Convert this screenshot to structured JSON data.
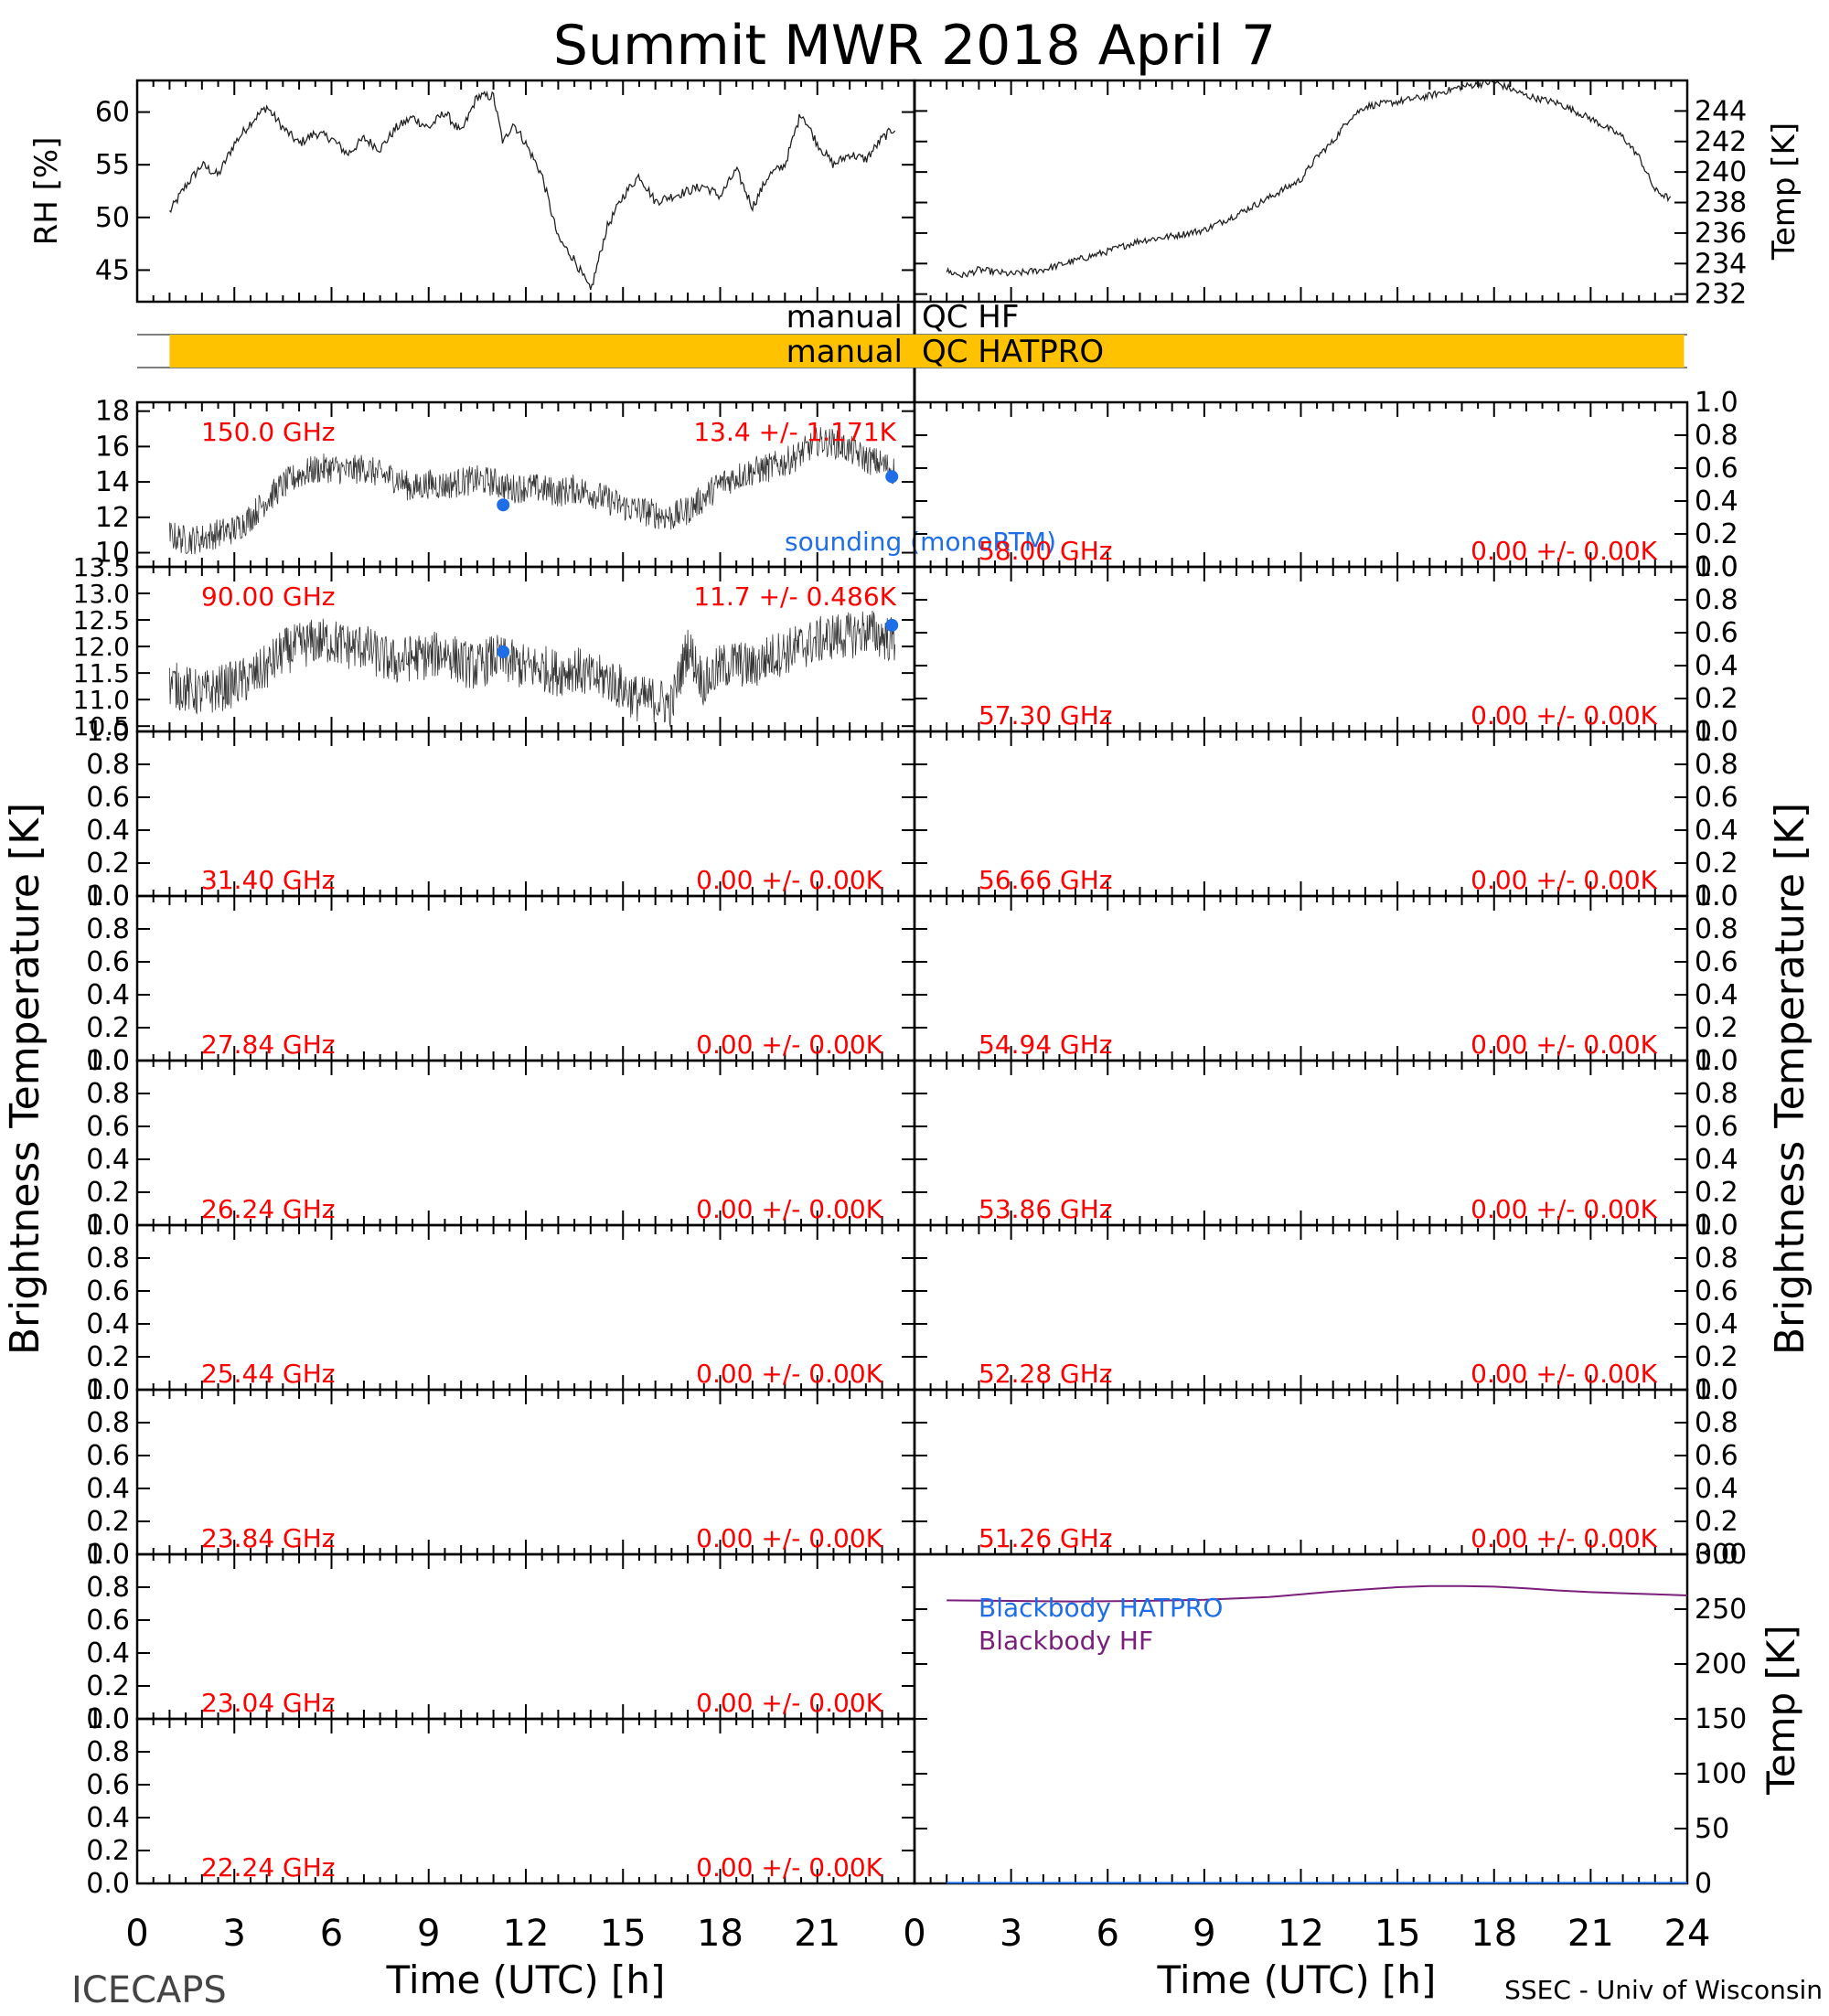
{
  "chart_data": {
    "type": "line",
    "title": "Summit  MWR  2018  April   7",
    "footer": {
      "left": "ICECAPS",
      "right": "SSEC  -  Univ of Wisconsin"
    },
    "xlabel": "Time  (UTC)  [h]",
    "xlim": [
      0,
      24
    ],
    "x_ticks": [
      "0",
      "3",
      "6",
      "9",
      "12",
      "15",
      "18",
      "21",
      "24"
    ],
    "bt_axis_label": "Brightness  Temperature  [K]",
    "colors": {
      "axes": "#000000",
      "channel_label": "#ff0000",
      "sounding": "#1e6ee8",
      "qc_bar": "#ffc200",
      "blackbody_hatpro": "#1e6ee8",
      "blackbody_hf": "#7a1f7a"
    },
    "met": {
      "rh": {
        "ylabel": "RH  [%]",
        "ylim": [
          42,
          63
        ],
        "ticks": [
          "45",
          "50",
          "55",
          "60"
        ],
        "x": [
          1.0,
          1.5,
          2.0,
          2.5,
          3.0,
          3.5,
          4.0,
          4.5,
          5.0,
          5.5,
          6.0,
          6.5,
          7.0,
          7.5,
          8.0,
          8.5,
          9.0,
          9.5,
          10.0,
          10.5,
          11.0,
          11.3,
          11.6,
          12.0,
          12.5,
          13.0,
          13.5,
          14.0,
          14.5,
          15.0,
          15.5,
          16.0,
          16.5,
          17.0,
          17.5,
          18.0,
          18.5,
          19.0,
          19.5,
          20.0,
          20.5,
          21.0,
          21.5,
          22.0,
          22.5,
          23.0,
          23.4
        ],
        "values": [
          50.5,
          53,
          55,
          54,
          57,
          59,
          60.5,
          58.5,
          57,
          58,
          57.5,
          56,
          57.5,
          56.5,
          58.5,
          59.5,
          58.5,
          60,
          58,
          61.5,
          61.5,
          57,
          59,
          57,
          54,
          48,
          46,
          43,
          49,
          52,
          54,
          51.5,
          52,
          52.5,
          53,
          52,
          54.5,
          51,
          54,
          55,
          60,
          57,
          55,
          56,
          55.5,
          57.5,
          58.5
        ]
      },
      "temp": {
        "ylabel": "Temp  [K]",
        "ylim": [
          231.5,
          246
        ],
        "ticks": [
          "232",
          "234",
          "236",
          "238",
          "240",
          "242",
          "244"
        ],
        "x": [
          1.0,
          1.5,
          2.0,
          3.0,
          4.0,
          5.0,
          6.0,
          7.0,
          8.0,
          9.0,
          10.0,
          11.0,
          12.0,
          12.5,
          13.0,
          13.5,
          14.0,
          15.0,
          16.0,
          17.0,
          18.0,
          19.0,
          20.0,
          21.0,
          22.0,
          22.5,
          23.0,
          23.5
        ],
        "values": [
          233.5,
          233.2,
          233.6,
          233.3,
          233.6,
          234.2,
          234.8,
          235.5,
          235.8,
          236.2,
          237.2,
          238.3,
          239.5,
          241.0,
          242.0,
          243.5,
          244.3,
          244.6,
          245.0,
          245.6,
          245.9,
          245.0,
          244.5,
          243.5,
          242.3,
          241.0,
          238.8,
          238.2
        ]
      }
    },
    "qc": {
      "hf_label": "manual",
      "hf_name": "QC  HF",
      "hatpro_label": "manual",
      "hatpro_name": "QC  HATPRO",
      "hatpro_range": [
        1.0,
        23.9
      ]
    },
    "legend": {
      "sounding": "sounding (monoRTM)",
      "blackbody_hatpro": "Blackbody  HATPRO",
      "blackbody_hf": "Blackbody  HF"
    },
    "panels_left": [
      {
        "freq": "150.0  GHz",
        "stat": "13.4  +/-  1.171K",
        "ylim": [
          9.2,
          18.5
        ],
        "ticks": [
          "10",
          "12",
          "14",
          "16",
          "18"
        ],
        "x": [
          1.0,
          1.5,
          2.0,
          2.5,
          3.0,
          3.5,
          4.0,
          4.5,
          5.0,
          5.5,
          6.0,
          6.5,
          7.0,
          7.5,
          8.0,
          8.5,
          9.0,
          9.5,
          10.0,
          10.5,
          11.0,
          11.5,
          12.0,
          12.5,
          13.0,
          13.5,
          14.0,
          14.5,
          15.0,
          15.5,
          16.0,
          16.5,
          17.0,
          17.5,
          18.0,
          18.5,
          19.0,
          19.5,
          20.0,
          20.5,
          21.0,
          21.5,
          22.0,
          22.5,
          23.0,
          23.4
        ],
        "values": [
          11.0,
          10.7,
          10.8,
          11.1,
          11.3,
          12.0,
          13.0,
          13.8,
          14.4,
          14.7,
          14.8,
          14.6,
          14.8,
          14.4,
          14.2,
          13.6,
          13.9,
          13.8,
          14.0,
          14.1,
          14.0,
          13.6,
          13.7,
          13.6,
          13.4,
          13.6,
          13.4,
          13.0,
          12.6,
          12.4,
          12.2,
          12.0,
          12.4,
          13.1,
          13.9,
          14.3,
          14.6,
          14.8,
          15.1,
          15.6,
          16.3,
          16.2,
          15.8,
          15.3,
          15.0,
          14.6
        ],
        "noise": 0.85,
        "sounding": [
          [
            11.3,
            12.7
          ],
          [
            23.3,
            14.3
          ]
        ]
      },
      {
        "freq": "90.00  GHz",
        "stat": "11.7  +/-  0.486K",
        "ylim": [
          10.4,
          13.5
        ],
        "ticks": [
          "10.5",
          "11.0",
          "11.5",
          "12.0",
          "12.5",
          "13.0",
          "13.5"
        ],
        "x": [
          1.0,
          1.5,
          2.0,
          2.5,
          3.0,
          3.5,
          4.0,
          4.5,
          5.0,
          5.5,
          6.0,
          6.5,
          7.0,
          7.5,
          8.0,
          8.5,
          9.0,
          9.5,
          10.0,
          10.5,
          11.0,
          11.5,
          12.0,
          12.5,
          13.0,
          13.5,
          14.0,
          14.5,
          15.0,
          15.5,
          16.0,
          16.5,
          17.0,
          17.5,
          18.0,
          18.5,
          19.0,
          19.5,
          20.0,
          20.5,
          21.0,
          21.5,
          22.0,
          22.5,
          23.0,
          23.4
        ],
        "values": [
          11.3,
          11.2,
          11.1,
          11.2,
          11.3,
          11.4,
          11.6,
          11.9,
          12.0,
          12.1,
          12.1,
          12.0,
          12.0,
          11.8,
          11.7,
          11.8,
          11.8,
          11.9,
          11.7,
          11.6,
          11.8,
          11.7,
          11.6,
          11.6,
          11.5,
          11.6,
          11.4,
          11.4,
          11.2,
          11.0,
          11.0,
          10.9,
          12.0,
          11.3,
          11.6,
          11.7,
          11.6,
          11.8,
          11.9,
          12.0,
          12.1,
          12.2,
          12.2,
          12.3,
          12.2,
          12.1
        ],
        "noise": 0.45,
        "sounding": [
          [
            11.3,
            11.9
          ],
          [
            23.3,
            12.4
          ]
        ]
      },
      {
        "freq": "31.40  GHz",
        "stat": "0.00  +/-  0.00K",
        "ylim": [
          0,
          1
        ],
        "ticks": [
          "0.0",
          "0.2",
          "0.4",
          "0.6",
          "0.8",
          "1.0"
        ]
      },
      {
        "freq": "27.84  GHz",
        "stat": "0.00  +/-  0.00K",
        "ylim": [
          0,
          1
        ],
        "ticks": [
          "0.0",
          "0.2",
          "0.4",
          "0.6",
          "0.8",
          "1.0"
        ]
      },
      {
        "freq": "26.24  GHz",
        "stat": "0.00  +/-  0.00K",
        "ylim": [
          0,
          1
        ],
        "ticks": [
          "0.0",
          "0.2",
          "0.4",
          "0.6",
          "0.8",
          "1.0"
        ]
      },
      {
        "freq": "25.44  GHz",
        "stat": "0.00  +/-  0.00K",
        "ylim": [
          0,
          1
        ],
        "ticks": [
          "0.0",
          "0.2",
          "0.4",
          "0.6",
          "0.8",
          "1.0"
        ]
      },
      {
        "freq": "23.84  GHz",
        "stat": "0.00  +/-  0.00K",
        "ylim": [
          0,
          1
        ],
        "ticks": [
          "0.0",
          "0.2",
          "0.4",
          "0.6",
          "0.8",
          "1.0"
        ]
      },
      {
        "freq": "23.04  GHz",
        "stat": "0.00  +/-  0.00K",
        "ylim": [
          0,
          1
        ],
        "ticks": [
          "0.0",
          "0.2",
          "0.4",
          "0.6",
          "0.8",
          "1.0"
        ]
      },
      {
        "freq": "22.24  GHz",
        "stat": "0.00  +/-  0.00K",
        "ylim": [
          0,
          1
        ],
        "ticks": [
          "0.0",
          "0.2",
          "0.4",
          "0.6",
          "0.8",
          "1.0"
        ]
      }
    ],
    "panels_right": [
      {
        "freq": "58.00  GHz",
        "stat": "0.00  +/-  0.00K",
        "ylim": [
          0,
          1
        ],
        "ticks": [
          "0.0",
          "0.2",
          "0.4",
          "0.6",
          "0.8",
          "1.0"
        ]
      },
      {
        "freq": "57.30  GHz",
        "stat": "0.00  +/-  0.00K",
        "ylim": [
          0,
          1
        ],
        "ticks": [
          "0.0",
          "0.2",
          "0.4",
          "0.6",
          "0.8",
          "1.0"
        ]
      },
      {
        "freq": "56.66  GHz",
        "stat": "0.00  +/-  0.00K",
        "ylim": [
          0,
          1
        ],
        "ticks": [
          "0.0",
          "0.2",
          "0.4",
          "0.6",
          "0.8",
          "1.0"
        ]
      },
      {
        "freq": "54.94  GHz",
        "stat": "0.00  +/-  0.00K",
        "ylim": [
          0,
          1
        ],
        "ticks": [
          "0.0",
          "0.2",
          "0.4",
          "0.6",
          "0.8",
          "1.0"
        ]
      },
      {
        "freq": "53.86  GHz",
        "stat": "0.00  +/-  0.00K",
        "ylim": [
          0,
          1
        ],
        "ticks": [
          "0.0",
          "0.2",
          "0.4",
          "0.6",
          "0.8",
          "1.0"
        ]
      },
      {
        "freq": "52.28  GHz",
        "stat": "0.00  +/-  0.00K",
        "ylim": [
          0,
          1
        ],
        "ticks": [
          "0.0",
          "0.2",
          "0.4",
          "0.6",
          "0.8",
          "1.0"
        ]
      },
      {
        "freq": "51.26  GHz",
        "stat": "0.00  +/-  0.00K",
        "ylim": [
          0,
          1
        ],
        "ticks": [
          "0.0",
          "0.2",
          "0.4",
          "0.6",
          "0.8",
          "1.0"
        ]
      }
    ],
    "blackbody": {
      "ylabel": "Temp  [K]",
      "ylim": [
        0,
        300
      ],
      "ticks": [
        "0",
        "50",
        "100",
        "150",
        "200",
        "250",
        "300"
      ],
      "x": [
        1,
        3,
        5,
        7,
        9,
        11,
        13,
        15,
        16,
        17,
        18,
        19,
        20,
        21,
        22,
        23,
        24
      ],
      "hf_values": [
        258,
        257.5,
        257,
        257.5,
        258.5,
        261,
        266,
        270,
        271,
        271,
        270.5,
        269,
        267,
        265.5,
        264.5,
        263.5,
        262.5
      ],
      "hatpro_values": [
        0.5,
        0.5,
        0.5,
        0.5,
        0.5,
        0.5,
        0.5,
        0.5,
        0.5,
        0.5,
        0.5,
        0.5,
        0.5,
        0.5,
        0.5,
        0.5,
        0.5
      ]
    }
  }
}
